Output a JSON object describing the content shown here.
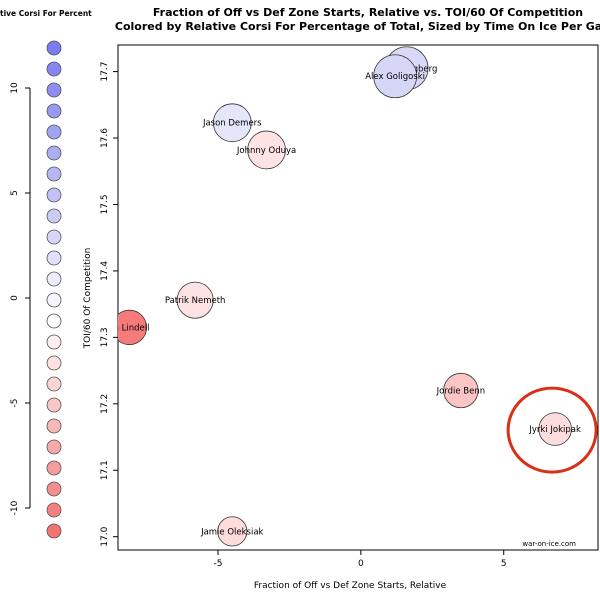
{
  "chart_data": {
    "type": "scatter",
    "title": "Fraction of Off vs Def Zone Starts, Relative vs. TOI/60 Of Competition",
    "subtitle": "Colored by Relative Corsi For Percentage of Total, Sized by Time On Ice Per Game",
    "xlabel": "Fraction of Off vs Def Zone Starts, Relative",
    "ylabel": "TOI/60 Of Competition",
    "xlim": [
      -8.5,
      8.3
    ],
    "ylim": [
      16.98,
      17.74
    ],
    "xticks": [
      -5,
      0,
      5
    ],
    "yticks": [
      17.0,
      17.1,
      17.2,
      17.3,
      17.4,
      17.5,
      17.6,
      17.7
    ],
    "xtick_labels": [
      "-5",
      "0",
      "5"
    ],
    "ytick_labels": [
      "17.0",
      "17.1",
      "17.2",
      "17.3",
      "17.4",
      "17.5",
      "17.6",
      "17.7"
    ],
    "credit": "war-on-ice.com",
    "points": [
      {
        "label": "John Klingberg",
        "x": 1.6,
        "y": 17.705,
        "color": "#d9d9f7",
        "size": 25
      },
      {
        "label": "Alex Goligoski",
        "x": 1.2,
        "y": 17.693,
        "color": "#d6d6f6",
        "size": 25
      },
      {
        "label": "Jason Demers",
        "x": -4.5,
        "y": 17.623,
        "color": "#e6e6fa",
        "size": 22
      },
      {
        "label": "Johnny Oduya",
        "x": -3.3,
        "y": 17.582,
        "color": "#fde3e3",
        "size": 22
      },
      {
        "label": "Patrik Nemeth",
        "x": -5.8,
        "y": 17.356,
        "color": "#fce2e2",
        "size": 21
      },
      {
        "label": "Jyrki Jokipakka",
        "x": 6.8,
        "y": 17.162,
        "color": "#fcdcdc",
        "size": 19
      },
      {
        "label": "Mattias Backman Lindell",
        "x": -8.1,
        "y": 17.315,
        "color": "#f87b7b",
        "size": 20
      },
      {
        "label": "Jordie Benn",
        "x": 3.5,
        "y": 17.22,
        "color": "#fbc5c5",
        "size": 20
      },
      {
        "label": "Jamie Oleksiak",
        "x": -4.5,
        "y": 17.008,
        "color": "#fddcdc",
        "size": 17
      }
    ],
    "display_labels": [
      "John Klingberg",
      "Alex Goligoski",
      "Jason Demers",
      "Johnny Oduya",
      "Patrik Nemeth",
      "Jyrki Jokipak",
      "sa Lindell",
      "Jordie Benn",
      "Jamie Oleksiak"
    ],
    "legend": {
      "title": "tive Corsi For Percent",
      "ticks": [
        10,
        5,
        0,
        -5,
        -10
      ],
      "tick_labels": [
        "10",
        "5",
        "0",
        "-5",
        "-10"
      ],
      "colors": [
        "#7b7bf2",
        "#8585f2",
        "#8f8ff3",
        "#9999f4",
        "#a3a3f5",
        "#adadf6",
        "#b7b7f7",
        "#c2c2f8",
        "#ccccf9",
        "#d6d6fa",
        "#e0e0fb",
        "#ebebfc",
        "#f5f5fd",
        "#ffffff",
        "#fdf0f0",
        "#fce2e2",
        "#fbd4d4",
        "#fac6c6",
        "#f9b8b8",
        "#f8aaaa",
        "#f79c9c",
        "#f68e8e",
        "#f58080",
        "#f47272"
      ]
    },
    "highlight": {
      "target": "Jyrki Jokipakka",
      "color": "#d93018"
    }
  }
}
